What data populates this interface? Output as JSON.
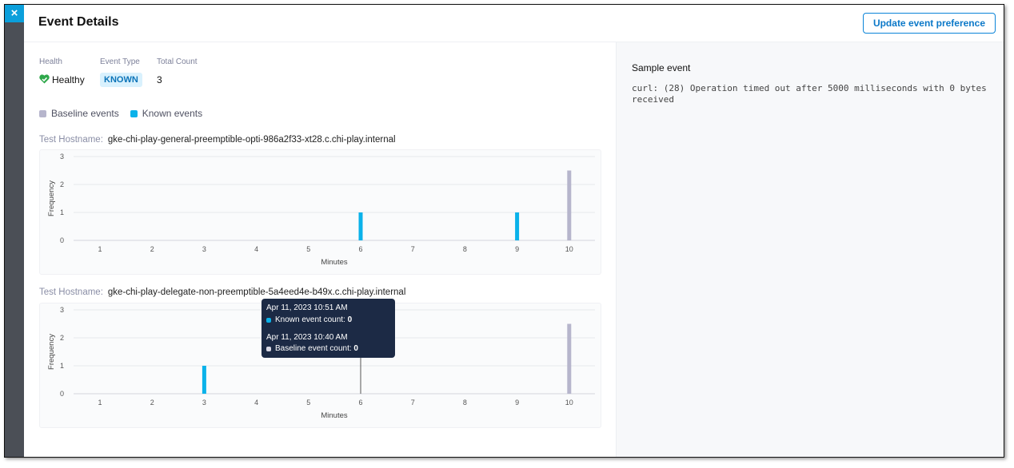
{
  "header": {
    "title": "Event Details",
    "update_button": "Update event preference",
    "close_icon": "×"
  },
  "meta": {
    "health_label": "Health",
    "health_value": "Healthy",
    "event_type_label": "Event Type",
    "event_type_value": "KNOWN",
    "total_count_label": "Total Count",
    "total_count_value": "3"
  },
  "legend": {
    "baseline": "Baseline events",
    "known": "Known events"
  },
  "colors": {
    "known": "#0ab2ea",
    "baseline": "#b6b5cc",
    "accent": "#0b84d8",
    "health": "#2ea84a"
  },
  "hosts": [
    {
      "label": "Test Hostname:",
      "value": "gke-chi-play-general-preemptible-opti-986a2f33-xt28.c.chi-play.internal"
    },
    {
      "label": "Test Hostname:",
      "value": "gke-chi-play-delegate-non-preemptible-5a4eed4e-b49x.c.chi-play.internal"
    }
  ],
  "chart_data": [
    {
      "type": "bar",
      "xlabel": "Minutes",
      "ylabel": "Frequency",
      "categories": [
        1,
        2,
        3,
        4,
        5,
        6,
        7,
        8,
        9,
        10
      ],
      "ylim": [
        0,
        3
      ],
      "yticks": [
        0,
        1,
        2,
        3
      ],
      "grid": true,
      "series": [
        {
          "name": "Known events",
          "values": [
            0,
            0,
            0,
            0,
            0,
            1,
            0,
            0,
            1,
            0
          ]
        },
        {
          "name": "Baseline events",
          "values": [
            0,
            0,
            0,
            0,
            0,
            0,
            0,
            0,
            0,
            2.5
          ]
        }
      ]
    },
    {
      "type": "bar",
      "xlabel": "Minutes",
      "ylabel": "Frequency",
      "categories": [
        1,
        2,
        3,
        4,
        5,
        6,
        7,
        8,
        9,
        10
      ],
      "ylim": [
        0,
        3
      ],
      "yticks": [
        0,
        1,
        2,
        3
      ],
      "grid": true,
      "series": [
        {
          "name": "Known events",
          "values": [
            0,
            0,
            1,
            0,
            0,
            0,
            0,
            0,
            0,
            0
          ]
        },
        {
          "name": "Baseline events",
          "values": [
            0,
            0,
            0,
            0,
            0,
            0,
            0,
            0,
            0,
            2.5
          ]
        }
      ],
      "hover_x": 6
    }
  ],
  "tooltip": {
    "known_time": "Apr 11, 2023 10:51 AM",
    "known_label": "Known event count:",
    "known_value": "0",
    "baseline_time": "Apr 11, 2023 10:40 AM",
    "baseline_label": "Baseline event count:",
    "baseline_value": "0"
  },
  "sample": {
    "title": "Sample event",
    "body": "curl: (28) Operation timed out after 5000 milliseconds with 0 bytes received"
  }
}
